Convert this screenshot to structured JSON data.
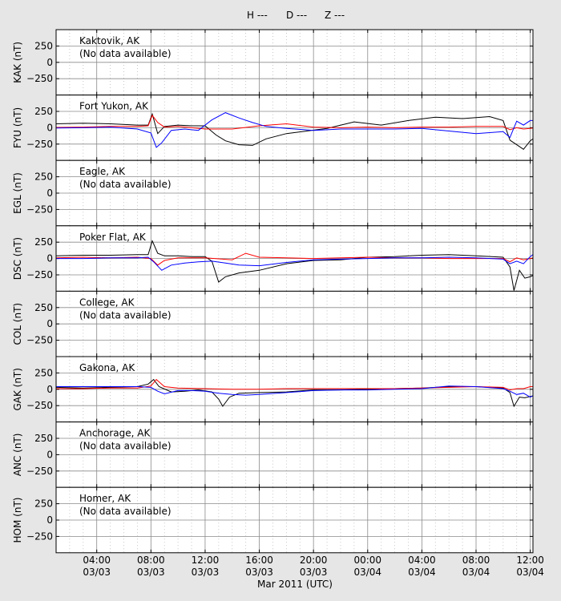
{
  "legend": [
    {
      "label": "H ---",
      "color": "#000000"
    },
    {
      "label": "D ---",
      "color": "#ff0000"
    },
    {
      "label": "Z ---",
      "color": "#0000ff"
    }
  ],
  "xaxis": {
    "label": "Mar 2011 (UTC)",
    "ticks": [
      {
        "t": 4,
        "time": "04:00",
        "date": "03/03"
      },
      {
        "t": 8,
        "time": "08:00",
        "date": "03/03"
      },
      {
        "t": 12,
        "time": "12:00",
        "date": "03/03"
      },
      {
        "t": 16,
        "time": "16:00",
        "date": "03/03"
      },
      {
        "t": 20,
        "time": "20:00",
        "date": "03/03"
      },
      {
        "t": 24,
        "time": "00:00",
        "date": "03/04"
      },
      {
        "t": 28,
        "time": "04:00",
        "date": "03/04"
      },
      {
        "t": 32,
        "time": "08:00",
        "date": "03/04"
      },
      {
        "t": 36,
        "time": "12:00",
        "date": "03/04"
      }
    ]
  },
  "yticks": [
    "250",
    "0",
    "−250"
  ],
  "chart_data": {
    "type": "line",
    "xlim_hours_since_0000_0303": [
      1,
      36.2
    ],
    "ylim": [
      -500,
      500
    ],
    "grid": true,
    "panels": [
      {
        "ylabel": "KAK (nT)",
        "station": "Kaktovik, AK",
        "note": "(No data available)",
        "series": []
      },
      {
        "ylabel": "FYU (nT)",
        "station": "Fort Yukon, AK",
        "note": "",
        "series": [
          {
            "name": "H",
            "color": "#000000",
            "x": [
              1,
              3,
              5,
              7,
              7.8,
              8.1,
              8.5,
              9,
              10,
              11,
              12,
              12.8,
              13.5,
              14.5,
              15.5,
              16.5,
              18,
              19.5,
              21,
              23,
              25,
              27,
              29,
              31,
              33,
              34,
              34.5,
              35,
              35.5,
              36,
              36.2
            ],
            "y": [
              60,
              70,
              60,
              40,
              40,
              210,
              -90,
              20,
              40,
              30,
              30,
              -110,
              -200,
              -260,
              -270,
              -170,
              -90,
              -50,
              -10,
              90,
              40,
              110,
              160,
              140,
              170,
              110,
              -190,
              -260,
              -330,
              -200,
              -170
            ]
          },
          {
            "name": "D",
            "color": "#ff0000",
            "x": [
              1,
              3,
              5,
              7,
              7.8,
              8.1,
              8.5,
              9,
              10,
              12,
              14,
              16,
              18,
              20,
              22,
              24,
              26,
              28,
              30,
              32,
              34,
              34.5,
              35,
              35.5,
              36,
              36.2
            ],
            "y": [
              5,
              10,
              20,
              20,
              30,
              190,
              80,
              10,
              20,
              -20,
              -20,
              30,
              60,
              10,
              0,
              10,
              0,
              10,
              10,
              20,
              20,
              -30,
              0,
              -20,
              -10,
              -5
            ]
          },
          {
            "name": "Z",
            "color": "#0000ff",
            "x": [
              1,
              3,
              5,
              7,
              8,
              8.4,
              8.8,
              9.5,
              10.5,
              11.5,
              12.5,
              13.5,
              14.5,
              15.5,
              16.5,
              18,
              20,
              22,
              24,
              26,
              28,
              30,
              32,
              34,
              34.5,
              35,
              35.5,
              36,
              36.2
            ],
            "y": [
              -5,
              0,
              10,
              -20,
              -80,
              -300,
              -230,
              -40,
              -20,
              -40,
              120,
              230,
              150,
              80,
              20,
              -10,
              -40,
              -20,
              -20,
              -20,
              -10,
              -50,
              -90,
              -60,
              -150,
              100,
              40,
              110,
              110
            ]
          }
        ]
      },
      {
        "ylabel": "EGL (nT)",
        "station": "Eagle, AK",
        "note": "(No data available)",
        "series": []
      },
      {
        "ylabel": "DSC (nT)",
        "station": "Poker Flat, AK",
        "note": "",
        "series": [
          {
            "name": "H",
            "color": "#000000",
            "x": [
              1,
              3,
              5,
              7,
              7.8,
              8.1,
              8.5,
              9,
              10,
              11,
              12,
              12.5,
              13,
              13.5,
              14.5,
              16,
              18,
              20,
              22,
              24,
              26,
              28,
              30,
              32,
              34,
              34.5,
              34.8,
              35.2,
              35.6,
              36,
              36.2
            ],
            "y": [
              40,
              50,
              50,
              60,
              60,
              270,
              80,
              40,
              40,
              30,
              30,
              -40,
              -360,
              -280,
              -220,
              -180,
              -80,
              -30,
              -20,
              20,
              30,
              50,
              60,
              40,
              20,
              -130,
              -490,
              -180,
              -300,
              -280,
              -260
            ]
          },
          {
            "name": "D",
            "color": "#ff0000",
            "x": [
              1,
              3,
              5,
              7,
              8,
              8.5,
              9,
              10,
              12,
              14,
              15,
              16,
              18,
              20,
              22,
              24,
              26,
              28,
              30,
              32,
              34,
              34.5,
              35,
              35.5,
              36,
              36.2
            ],
            "y": [
              10,
              20,
              10,
              20,
              0,
              -100,
              -30,
              10,
              10,
              -20,
              80,
              20,
              10,
              0,
              10,
              20,
              10,
              10,
              0,
              0,
              0,
              -50,
              10,
              -20,
              0,
              10
            ]
          },
          {
            "name": "Z",
            "color": "#0000ff",
            "x": [
              1,
              3,
              5,
              7,
              7.8,
              8.2,
              8.8,
              9.5,
              10.5,
              11.5,
              12.5,
              13.5,
              14.5,
              16,
              18,
              20,
              22,
              24,
              26,
              28,
              30,
              32,
              34,
              34.5,
              35,
              35.5,
              36,
              36.2
            ],
            "y": [
              0,
              0,
              10,
              10,
              20,
              -50,
              -180,
              -100,
              -70,
              -50,
              -40,
              -70,
              -100,
              -110,
              -60,
              -20,
              -10,
              0,
              10,
              10,
              20,
              10,
              -10,
              -80,
              -40,
              -80,
              30,
              60
            ]
          }
        ]
      },
      {
        "ylabel": "COL (nT)",
        "station": "College, AK",
        "note": "(No data available)",
        "series": []
      },
      {
        "ylabel": "GAK (nT)",
        "station": "Gakona, AK",
        "note": "",
        "series": [
          {
            "name": "H",
            "color": "#000000",
            "x": [
              1,
              3,
              5,
              7,
              7.8,
              8.2,
              8.6,
              9.5,
              10.5,
              11.5,
              12.5,
              13,
              13.3,
              13.8,
              14.5,
              16,
              18,
              20,
              22,
              24,
              26,
              28,
              30,
              32,
              34,
              34.5,
              34.8,
              35.2,
              35.6,
              36,
              36.2
            ],
            "y": [
              30,
              20,
              30,
              40,
              80,
              150,
              40,
              -40,
              -30,
              -10,
              -40,
              -150,
              -260,
              -120,
              -60,
              -50,
              -40,
              -10,
              -10,
              0,
              10,
              20,
              40,
              40,
              20,
              -50,
              -260,
              -120,
              -130,
              -110,
              -100
            ]
          },
          {
            "name": "D",
            "color": "#ff0000",
            "x": [
              1,
              3,
              5,
              7,
              8,
              8.4,
              9,
              10,
              12,
              14,
              16,
              18,
              20,
              22,
              24,
              26,
              28,
              30,
              32,
              34,
              34.5,
              35,
              35.5,
              36,
              36.2
            ],
            "y": [
              10,
              10,
              20,
              20,
              50,
              150,
              40,
              20,
              10,
              0,
              0,
              10,
              10,
              10,
              10,
              10,
              20,
              30,
              40,
              30,
              -10,
              10,
              10,
              40,
              40
            ]
          },
          {
            "name": "Z",
            "color": "#0000ff",
            "x": [
              1,
              3,
              5,
              7,
              8,
              8.5,
              9,
              10,
              11,
              12,
              13,
              14,
              15,
              16,
              18,
              20,
              22,
              24,
              26,
              28,
              30,
              32,
              34,
              34.5,
              35,
              35.5,
              36,
              36.2
            ],
            "y": [
              40,
              40,
              40,
              40,
              30,
              -30,
              -70,
              -20,
              -20,
              -30,
              -60,
              -80,
              -90,
              -80,
              -50,
              -20,
              -10,
              -10,
              0,
              10,
              50,
              40,
              10,
              -30,
              -80,
              -60,
              -120,
              -100
            ]
          }
        ]
      },
      {
        "ylabel": "ANC (nT)",
        "station": "Anchorage, AK",
        "note": "(No data available)",
        "series": []
      },
      {
        "ylabel": "HOM (nT)",
        "station": "Homer, AK",
        "note": "(No data available)",
        "series": []
      }
    ]
  }
}
